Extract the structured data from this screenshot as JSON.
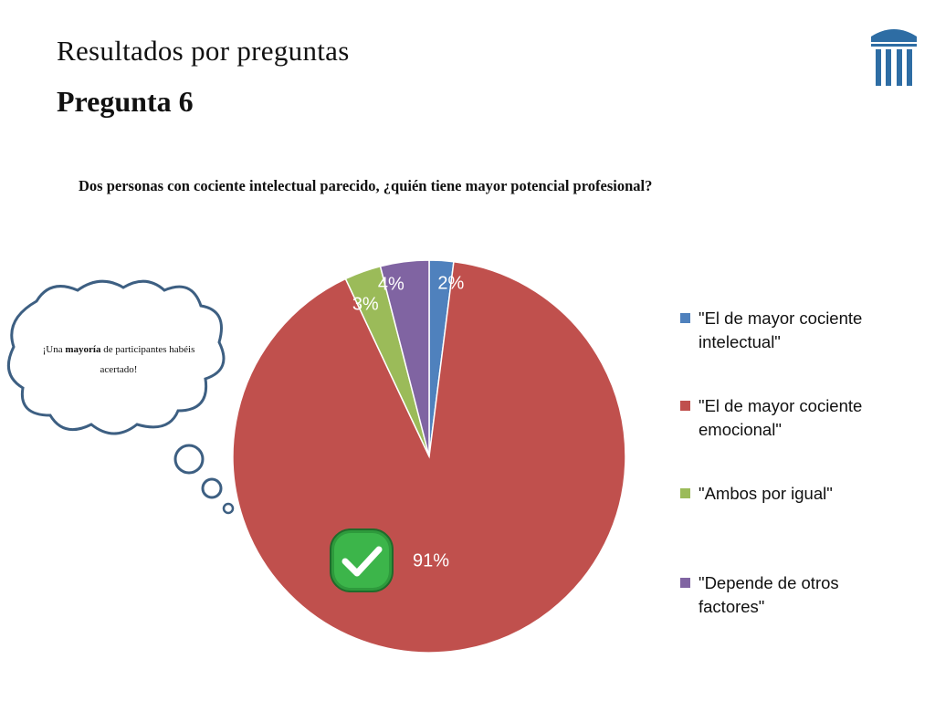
{
  "slide": {
    "title": "Resultados por preguntas",
    "subtitle": "Pregunta 6"
  },
  "thought_cloud": {
    "text_before": "¡Una",
    "text_bold": "mayoría",
    "text_after": "de participantes habéis acertado!"
  },
  "icons": {
    "logo": "columns-logo-icon",
    "check": "checkmark-icon"
  },
  "chart_data": {
    "type": "pie",
    "title": "Dos personas con cociente intelectual parecido, ¿quién tiene mayor potencial profesional?",
    "categories": [
      "\"El de mayor cociente intelectual\"",
      "\"El de mayor cociente emocional\"",
      "\"Ambos por igual\"",
      "\"Depende de otros factores\""
    ],
    "values": [
      2,
      91,
      3,
      4
    ],
    "labels": [
      "2%",
      "91%",
      "3%",
      "4%"
    ],
    "colors": [
      "#4f81bd",
      "#c0504d",
      "#9bbb59",
      "#8064a2"
    ],
    "legend": "right",
    "highlight_category": "\"El de mayor cociente emocional\""
  }
}
